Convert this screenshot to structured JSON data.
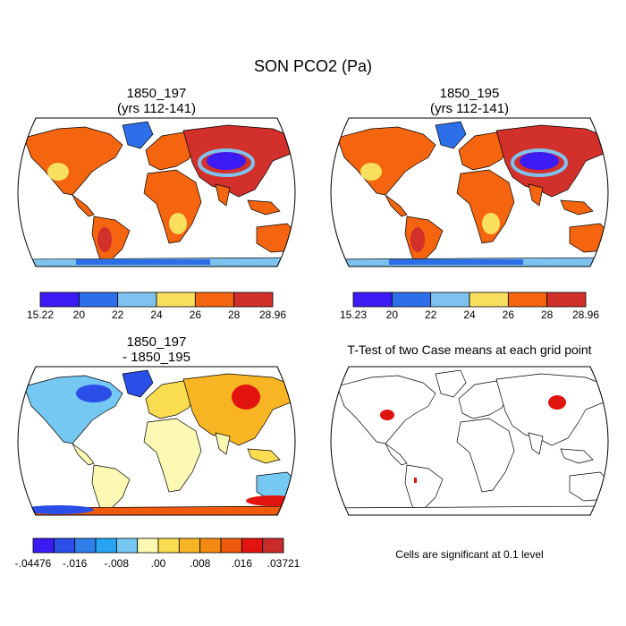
{
  "figure": {
    "title": "SON PCO2 (Pa)"
  },
  "panels": [
    {
      "id": "case1",
      "title_line1": "1850_197",
      "title_line2": "(yrs 112-141)"
    },
    {
      "id": "case2",
      "title_line1": "1850_195",
      "title_line2": "(yrs 112-141)"
    },
    {
      "id": "diff",
      "title_line1": "1850_197",
      "title_line2": "- 1850_195"
    },
    {
      "id": "ttest",
      "title_line1": "T-Test of two Case means at each grid point",
      "title_line2": ""
    }
  ],
  "colorbars": [
    {
      "id": "cb-case1",
      "colors": [
        "#3d1bf5",
        "#2d6fe8",
        "#7ec3ef",
        "#f8e05e",
        "#f5640f",
        "#d2302a"
      ],
      "labels": [
        "15.22",
        "20",
        "22",
        "24",
        "26",
        "28",
        "28.96"
      ]
    },
    {
      "id": "cb-case2",
      "colors": [
        "#3d1bf5",
        "#2d6fe8",
        "#7ec3ef",
        "#f8e05e",
        "#f5640f",
        "#d2302a"
      ],
      "labels": [
        "15.23",
        "20",
        "22",
        "24",
        "26",
        "28",
        "28.96"
      ]
    },
    {
      "id": "cb-diff",
      "colors": [
        "#3a1cf3",
        "#2a4ee7",
        "#2e7fe9",
        "#27a4f2",
        "#75c8f1",
        "#fcf9b4",
        "#f9dc4f",
        "#f7b523",
        "#f38a12",
        "#ef5a0c",
        "#e3140f",
        "#c92a2a"
      ],
      "labels": [
        "-.04476",
        "-.016",
        "-.008",
        ".00",
        ".008",
        ".016",
        ".03721"
      ],
      "label_positions": [
        0,
        2,
        4,
        6,
        8,
        10,
        12
      ]
    }
  ],
  "legend_note": "Cells are significant at 0.1 level",
  "significance_color": "#e0140f"
}
